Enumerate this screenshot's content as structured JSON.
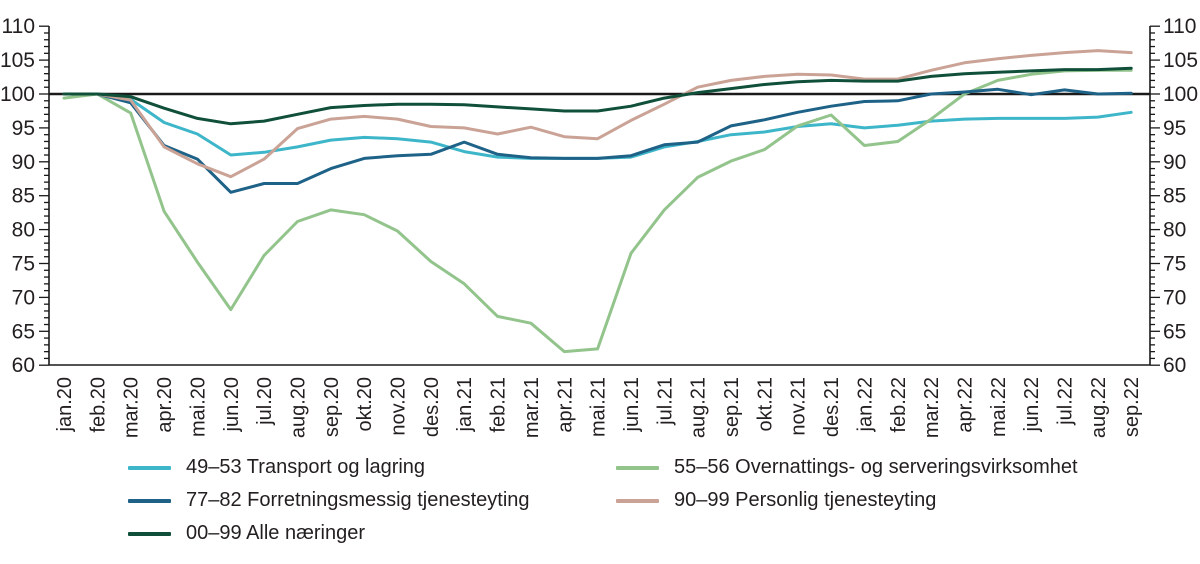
{
  "chart_data": {
    "type": "line",
    "title": "",
    "xlabel": "",
    "ylabel": "",
    "ylim": [
      60,
      110
    ],
    "y_tick_step": 5,
    "y_minor_tick_step": 1,
    "y_tick_labels": [
      "60",
      "65",
      "70",
      "75",
      "80",
      "85",
      "90",
      "95",
      "100",
      "105",
      "110"
    ],
    "y_axis_sides": [
      "left",
      "right"
    ],
    "grid": "off",
    "reference_line_y": 100,
    "legend_position": "bottom",
    "legend_columns": [
      [
        0,
        2,
        4
      ],
      [
        1,
        3
      ]
    ],
    "x_labels": [
      "jan.20",
      "feb.20",
      "mar.20",
      "apr.20",
      "mai.20",
      "jun.20",
      "jul.20",
      "aug.20",
      "sep.20",
      "okt.20",
      "nov.20",
      "des.20",
      "jan.21",
      "feb.21",
      "mar.21",
      "apr.21",
      "mai.21",
      "jun.21",
      "jul.21",
      "aug.21",
      "sep.21",
      "okt.21",
      "nov.21",
      "des.21",
      "jan.22",
      "feb.22",
      "mar.22",
      "apr.22",
      "mai.22",
      "jun.22",
      "jul.22",
      "aug.22",
      "sep.22"
    ],
    "series": [
      {
        "name": "49–53 Transport og lagring",
        "color": "#3eb6c9",
        "values": [
          100,
          100,
          99.2,
          95.8,
          94.1,
          91.0,
          91.4,
          92.2,
          93.2,
          93.6,
          93.4,
          92.9,
          91.5,
          90.7,
          90.5,
          90.5,
          90.5,
          90.7,
          92.2,
          93.0,
          94.0,
          94.4,
          95.2,
          95.6,
          95.0,
          95.4,
          96.0,
          96.3,
          96.4,
          96.4,
          96.4,
          96.6,
          97.3
        ]
      },
      {
        "name": "55–56 Overnattings- og serveringsvirksomhet",
        "color": "#92c48c",
        "values": [
          99.4,
          100,
          97.2,
          82.7,
          75.2,
          68.2,
          76.2,
          81.2,
          82.9,
          82.2,
          79.8,
          75.3,
          72.0,
          67.2,
          66.2,
          62.0,
          62.4,
          76.5,
          82.9,
          87.7,
          90.1,
          91.8,
          95.3,
          96.9,
          92.4,
          93.0,
          96.3,
          100.0,
          102.0,
          102.9,
          103.4,
          103.5,
          103.5
        ]
      },
      {
        "name": "77–82 Forretningsmessig tjenesteyting",
        "color": "#1e6288",
        "values": [
          100,
          100,
          98.7,
          92.4,
          90.4,
          85.5,
          86.8,
          86.8,
          89.0,
          90.5,
          90.9,
          91.1,
          92.9,
          91.1,
          90.6,
          90.5,
          90.5,
          90.9,
          92.5,
          92.9,
          95.3,
          96.2,
          97.3,
          98.2,
          98.9,
          99.0,
          100.0,
          100.3,
          100.7,
          99.9,
          100.6,
          100.0,
          100.1
        ]
      },
      {
        "name": "90–99 Personlig tjenesteyting",
        "color": "#caa396",
        "values": [
          100,
          100,
          99.1,
          92.2,
          89.7,
          87.8,
          90.4,
          94.9,
          96.3,
          96.7,
          96.3,
          95.2,
          95.0,
          94.1,
          95.1,
          93.7,
          93.4,
          96.1,
          98.5,
          101.0,
          102.0,
          102.6,
          102.9,
          102.8,
          102.2,
          102.2,
          103.5,
          104.6,
          105.2,
          105.7,
          106.1,
          106.4,
          106.1
        ]
      },
      {
        "name": "00–99 Alle næringer",
        "color": "#10503a",
        "values": [
          100,
          100,
          99.6,
          97.9,
          96.4,
          95.6,
          96.0,
          97.0,
          98.0,
          98.3,
          98.5,
          98.5,
          98.4,
          98.1,
          97.8,
          97.5,
          97.5,
          98.2,
          99.4,
          100.2,
          100.8,
          101.4,
          101.8,
          102.0,
          101.9,
          101.9,
          102.6,
          103.0,
          103.2,
          103.4,
          103.6,
          103.6,
          103.8
        ]
      }
    ],
    "colors": {
      "axis": "#1a1a1a",
      "reference_line": "#1a1a1a",
      "tick_label": "#231f20"
    }
  }
}
